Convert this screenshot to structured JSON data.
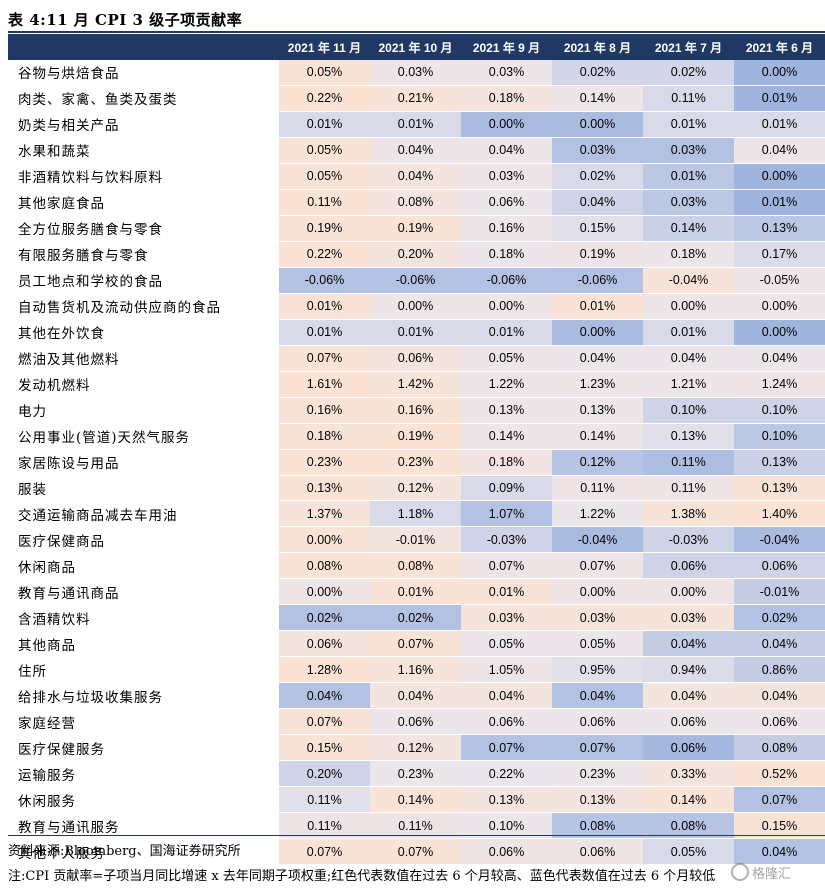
{
  "title": "表 4:11 月 CPI 3 级子项贡献率",
  "columns": [
    "2021 年 11 月",
    "2021 年 10 月",
    "2021 年 9 月",
    "2021 年 8 月",
    "2021 年 7 月",
    "2021 年 6 月"
  ],
  "colors": {
    "header_bg": "#1f3864",
    "high": "#fbe3d4",
    "low": "#8ea9db"
  },
  "rows": [
    {
      "name": "谷物与烘焙食品",
      "values": [
        "0.05%",
        "0.03%",
        "0.03%",
        "0.02%",
        "0.02%",
        "0.00%"
      ],
      "shades": [
        0.9,
        0.15,
        0.15,
        -0.25,
        -0.25,
        -0.8
      ]
    },
    {
      "name": "肉类、家禽、鱼类及蛋类",
      "values": [
        "0.22%",
        "0.21%",
        "0.18%",
        "0.14%",
        "0.11%",
        "0.01%"
      ],
      "shades": [
        0.95,
        0.85,
        0.6,
        0.15,
        -0.2,
        -0.8
      ]
    },
    {
      "name": "奶类与相关产品",
      "values": [
        "0.01%",
        "0.01%",
        "0.00%",
        "0.00%",
        "0.01%",
        "0.01%"
      ],
      "shades": [
        -0.2,
        -0.2,
        -0.7,
        -0.7,
        -0.2,
        -0.2
      ]
    },
    {
      "name": "水果和蔬菜",
      "values": [
        "0.05%",
        "0.04%",
        "0.04%",
        "0.03%",
        "0.03%",
        "0.04%"
      ],
      "shades": [
        0.9,
        0.2,
        0.2,
        -0.6,
        -0.6,
        0.2
      ]
    },
    {
      "name": "非酒精饮料与饮料原料",
      "values": [
        "0.05%",
        "0.04%",
        "0.03%",
        "0.02%",
        "0.01%",
        "0.00%"
      ],
      "shades": [
        0.9,
        0.6,
        0.2,
        -0.2,
        -0.5,
        -0.8
      ]
    },
    {
      "name": "其他家庭食品",
      "values": [
        "0.11%",
        "0.08%",
        "0.06%",
        "0.04%",
        "0.03%",
        "0.01%"
      ],
      "shades": [
        0.95,
        0.5,
        0.1,
        -0.3,
        -0.5,
        -0.8
      ]
    },
    {
      "name": "全方位服务膳食与零食",
      "values": [
        "0.19%",
        "0.19%",
        "0.16%",
        "0.15%",
        "0.14%",
        "0.13%"
      ],
      "shades": [
        0.9,
        0.9,
        0.2,
        -0.1,
        -0.35,
        -0.5
      ]
    },
    {
      "name": "有限服务膳食与零食",
      "values": [
        "0.22%",
        "0.20%",
        "0.18%",
        "0.19%",
        "0.18%",
        "0.17%"
      ],
      "shades": [
        0.95,
        0.6,
        0.1,
        0.3,
        0.1,
        -0.15
      ]
    },
    {
      "name": "员工地点和学校的食品",
      "values": [
        "-0.06%",
        "-0.06%",
        "-0.06%",
        "-0.06%",
        "-0.04%",
        "-0.05%"
      ],
      "shades": [
        -0.6,
        -0.6,
        -0.6,
        -0.6,
        0.8,
        0.2
      ]
    },
    {
      "name": "自动售货机及流动供应商的食品",
      "values": [
        "0.01%",
        "0.00%",
        "0.00%",
        "0.01%",
        "0.00%",
        "0.00%"
      ],
      "shades": [
        0.9,
        0.2,
        0.2,
        0.9,
        0.2,
        0.2
      ]
    },
    {
      "name": "其他在外饮食",
      "values": [
        "0.01%",
        "0.01%",
        "0.01%",
        "0.00%",
        "0.01%",
        "0.00%"
      ],
      "shades": [
        -0.2,
        -0.2,
        -0.2,
        -0.7,
        -0.2,
        -0.8
      ]
    },
    {
      "name": "燃油及其他燃料",
      "values": [
        "0.07%",
        "0.06%",
        "0.05%",
        "0.04%",
        "0.04%",
        "0.04%"
      ],
      "shades": [
        0.9,
        0.6,
        0.2,
        0.1,
        0.1,
        0.1
      ]
    },
    {
      "name": "发动机燃料",
      "values": [
        "1.61%",
        "1.42%",
        "1.22%",
        "1.23%",
        "1.21%",
        "1.24%"
      ],
      "shades": [
        0.95,
        0.7,
        0.2,
        0.25,
        0.15,
        0.3
      ]
    },
    {
      "name": "电力",
      "values": [
        "0.16%",
        "0.16%",
        "0.13%",
        "0.13%",
        "0.10%",
        "0.10%"
      ],
      "shades": [
        0.9,
        0.9,
        0.2,
        0.2,
        -0.3,
        -0.3
      ]
    },
    {
      "name": "公用事业(管道)天然气服务",
      "values": [
        "0.18%",
        "0.19%",
        "0.14%",
        "0.14%",
        "0.13%",
        "0.10%"
      ],
      "shades": [
        0.85,
        0.95,
        0.2,
        0.2,
        -0.1,
        -0.5
      ]
    },
    {
      "name": "家居陈设与用品",
      "values": [
        "0.23%",
        "0.23%",
        "0.18%",
        "0.12%",
        "0.11%",
        "0.13%"
      ],
      "shades": [
        0.95,
        0.95,
        0.4,
        -0.55,
        -0.65,
        -0.35
      ]
    },
    {
      "name": "服装",
      "values": [
        "0.13%",
        "0.12%",
        "0.09%",
        "0.11%",
        "0.11%",
        "0.13%"
      ],
      "shades": [
        0.9,
        0.6,
        -0.2,
        0.3,
        0.3,
        0.9
      ]
    },
    {
      "name": "交通运输商品减去车用油",
      "values": [
        "1.37%",
        "1.18%",
        "1.07%",
        "1.22%",
        "1.38%",
        "1.40%"
      ],
      "shades": [
        0.7,
        -0.2,
        -0.6,
        0.1,
        0.8,
        0.95
      ]
    },
    {
      "name": "医疗保健商品",
      "values": [
        "0.00%",
        "-0.01%",
        "-0.03%",
        "-0.04%",
        "-0.03%",
        "-0.04%"
      ],
      "shades": [
        0.9,
        0.5,
        -0.3,
        -0.7,
        -0.3,
        -0.7
      ]
    },
    {
      "name": "休闲商品",
      "values": [
        "0.08%",
        "0.08%",
        "0.07%",
        "0.07%",
        "0.06%",
        "0.06%"
      ],
      "shades": [
        0.9,
        0.9,
        0.3,
        0.3,
        -0.3,
        -0.3
      ]
    },
    {
      "name": "教育与通讯商品",
      "values": [
        "0.00%",
        "0.01%",
        "0.01%",
        "0.00%",
        "0.00%",
        "-0.01%"
      ],
      "shades": [
        0.3,
        0.9,
        0.9,
        0.3,
        0.3,
        -0.4
      ]
    },
    {
      "name": "含酒精饮料",
      "values": [
        "0.02%",
        "0.02%",
        "0.03%",
        "0.03%",
        "0.03%",
        "0.02%"
      ],
      "shades": [
        -0.6,
        -0.6,
        0.7,
        0.7,
        0.7,
        -0.6
      ]
    },
    {
      "name": "其他商品",
      "values": [
        "0.06%",
        "0.07%",
        "0.05%",
        "0.05%",
        "0.04%",
        "0.04%"
      ],
      "shades": [
        0.6,
        0.9,
        0.1,
        0.1,
        -0.4,
        -0.4
      ]
    },
    {
      "name": "住所",
      "values": [
        "1.28%",
        "1.16%",
        "1.05%",
        "0.95%",
        "0.94%",
        "0.86%"
      ],
      "shades": [
        0.95,
        0.7,
        0.3,
        -0.1,
        -0.15,
        -0.4
      ]
    },
    {
      "name": "给排水与垃圾收集服务",
      "values": [
        "0.04%",
        "0.04%",
        "0.04%",
        "0.04%",
        "0.04%",
        "0.04%"
      ],
      "shades": [
        -0.6,
        0.6,
        0.6,
        -0.6,
        0.6,
        0.6
      ]
    },
    {
      "name": "家庭经营",
      "values": [
        "0.07%",
        "0.06%",
        "0.06%",
        "0.06%",
        "0.06%",
        "0.06%"
      ],
      "shades": [
        0.9,
        0.1,
        0.1,
        0.1,
        0.1,
        0.1
      ]
    },
    {
      "name": "医疗保健服务",
      "values": [
        "0.15%",
        "0.12%",
        "0.07%",
        "0.07%",
        "0.06%",
        "0.08%"
      ],
      "shades": [
        0.9,
        0.5,
        -0.6,
        -0.6,
        -0.75,
        -0.4
      ]
    },
    {
      "name": "运输服务",
      "values": [
        "0.20%",
        "0.23%",
        "0.22%",
        "0.23%",
        "0.33%",
        "0.52%"
      ],
      "shades": [
        -0.3,
        0.1,
        0.0,
        0.1,
        0.6,
        0.95
      ]
    },
    {
      "name": "休闲服务",
      "values": [
        "0.11%",
        "0.14%",
        "0.13%",
        "0.13%",
        "0.14%",
        "0.07%"
      ],
      "shades": [
        -0.1,
        0.9,
        0.5,
        0.5,
        0.9,
        -0.6
      ]
    },
    {
      "name": "教育与通讯服务",
      "values": [
        "0.11%",
        "0.11%",
        "0.10%",
        "0.08%",
        "0.08%",
        "0.15%"
      ],
      "shades": [
        0.3,
        0.3,
        0.1,
        -0.55,
        -0.55,
        0.9
      ]
    },
    {
      "name": "其他个人服务",
      "values": [
        "0.07%",
        "0.07%",
        "0.06%",
        "0.06%",
        "0.05%",
        "0.04%"
      ],
      "shades": [
        0.9,
        0.9,
        0.3,
        0.3,
        -0.2,
        -0.6
      ]
    }
  ],
  "source": "资料来源:Bloomberg、国海证券研究所",
  "note": "注:CPI 贡献率=子项当月同比增速 x 去年同期子项权重;红色代表数值在过去 6 个月较高、蓝色代表数值在过去 6 个月较低",
  "watermark": "格隆汇"
}
